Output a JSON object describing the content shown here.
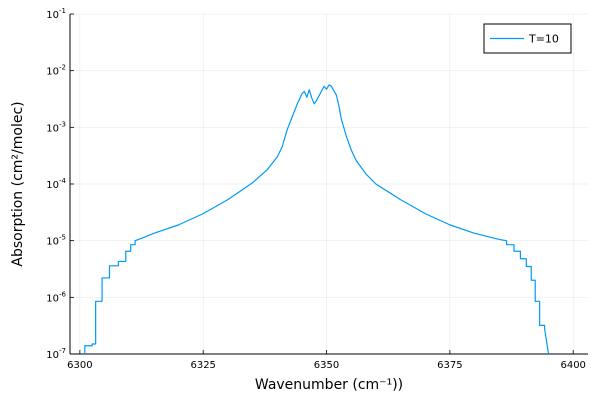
{
  "chart_data": {
    "type": "line",
    "title": "",
    "xlabel": "Wavenumber (cm⁻¹))",
    "ylabel": "Absorption (cm²/molec)",
    "xlim": [
      6298,
      6403
    ],
    "ylim_log10": [
      -7,
      -1
    ],
    "yscale": "log",
    "grid": true,
    "legend": "top-right",
    "x_ticks": [
      6300,
      6325,
      6350,
      6375,
      6400
    ],
    "y_tick_exponents": [
      -7,
      -6,
      -5,
      -4,
      -3,
      -2,
      -1
    ],
    "y_tick_base": "10",
    "series": [
      {
        "name": "T=10",
        "color": "#009af9",
        "x": [
          6301.0,
          6301.0,
          6302.5,
          6302.5,
          6303.2,
          6303.2,
          6304.5,
          6304.5,
          6306.0,
          6306.0,
          6307.8,
          6307.8,
          6309.3,
          6309.3,
          6310.3,
          6310.3,
          6311.2,
          6311.2,
          6312.5,
          6315,
          6320,
          6325,
          6330,
          6335,
          6338,
          6340,
          6341,
          6342,
          6343,
          6344,
          6345,
          6345.5,
          6346,
          6346.5,
          6347,
          6347.5,
          6348,
          6349,
          6349.5,
          6350,
          6350.5,
          6351,
          6351.5,
          6352,
          6352.5,
          6353,
          6354,
          6355,
          6356,
          6358,
          6360,
          6365,
          6370,
          6375,
          6380,
          6385,
          6386.5,
          6386.5,
          6388.0,
          6388.0,
          6389.3,
          6389.3,
          6390.5,
          6390.5,
          6391.5,
          6391.5,
          6392.3,
          6392.3,
          6393.2,
          6393.2,
          6394.2,
          6394.2,
          6395.0
        ],
        "y": [
          7e-08,
          1.4e-07,
          1.4e-07,
          1.5e-07,
          1.5e-07,
          8.5e-07,
          8.5e-07,
          2.2e-06,
          2.2e-06,
          3.6e-06,
          3.6e-06,
          4.3e-06,
          4.3e-06,
          6.5e-06,
          6.5e-06,
          8.5e-06,
          8.5e-06,
          1e-05,
          1.1e-05,
          1.35e-05,
          1.9e-05,
          3e-05,
          5.3e-05,
          0.000105,
          0.00018,
          0.0003,
          0.00045,
          0.0009,
          0.0015,
          0.0025,
          0.0039,
          0.0043,
          0.0034,
          0.0046,
          0.0033,
          0.0026,
          0.003,
          0.0044,
          0.0053,
          0.0047,
          0.0056,
          0.0053,
          0.0044,
          0.0037,
          0.0024,
          0.0014,
          0.0007,
          0.0004,
          0.00026,
          0.00015,
          0.0001,
          5.3e-05,
          3e-05,
          1.9e-05,
          1.35e-05,
          1.05e-05,
          1e-05,
          8.5e-06,
          8.5e-06,
          6.5e-06,
          6.5e-06,
          4.8e-06,
          4.8e-06,
          3.5e-06,
          3.5e-06,
          2e-06,
          2e-06,
          8.5e-07,
          8.5e-07,
          3.2e-07,
          3.2e-07,
          2.8e-07,
          1e-07
        ]
      }
    ]
  }
}
